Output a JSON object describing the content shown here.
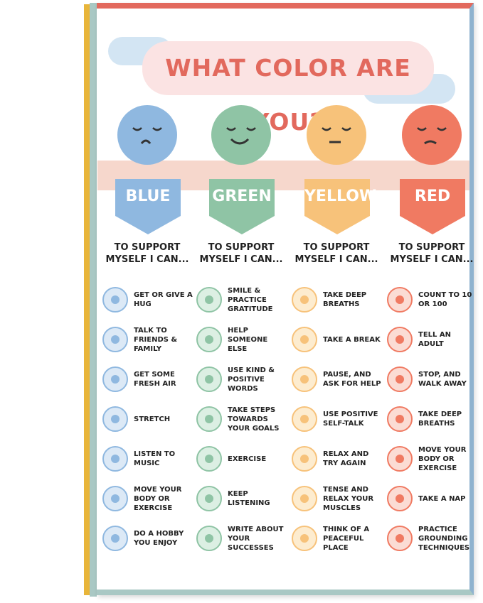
{
  "title": "WHAT COLOR ARE YOU?",
  "columns": [
    {
      "name": "BLUE",
      "subtitle": "TO SUPPORT MYSELF I CAN...",
      "items": [
        "GET OR GIVE A HUG",
        "TALK TO FRIENDS & FAMILY",
        "GET SOME FRESH AIR",
        "STRETCH",
        "LISTEN TO MUSIC",
        "MOVE YOUR BODY OR EXERCISE",
        "DO A HOBBY YOU ENJOY"
      ]
    },
    {
      "name": "GREEN",
      "subtitle": "TO SUPPORT MYSELF I CAN...",
      "items": [
        "SMILE & PRACTICE GRATITUDE",
        "HELP SOMEONE ELSE",
        "USE KIND & POSITIVE WORDS",
        "TAKE STEPS TOWARDS YOUR GOALS",
        "EXERCISE",
        "KEEP LISTENING",
        "WRITE ABOUT YOUR SUCCESSES"
      ]
    },
    {
      "name": "YELLOW",
      "subtitle": "TO SUPPORT MYSELF I CAN...",
      "items": [
        "TAKE DEEP BREATHS",
        "TAKE A BREAK",
        "PAUSE, AND ASK FOR HELP",
        "USE POSITIVE SELF-TALK",
        "RELAX AND TRY AGAIN",
        "TENSE AND RELAX YOUR MUSCLES",
        "THINK OF A PEACEFUL PLACE"
      ]
    },
    {
      "name": "RED",
      "subtitle": "TO SUPPORT MYSELF I CAN...",
      "items": [
        "COUNT TO 10 OR 100",
        "TELL AN ADULT",
        "STOP, AND WALK AWAY",
        "TAKE DEEP BREATHS",
        "MOVE YOUR BODY OR EXERCISE",
        "TAKE A NAP",
        "PRACTICE GROUNDING TECHNIQUES"
      ]
    }
  ]
}
